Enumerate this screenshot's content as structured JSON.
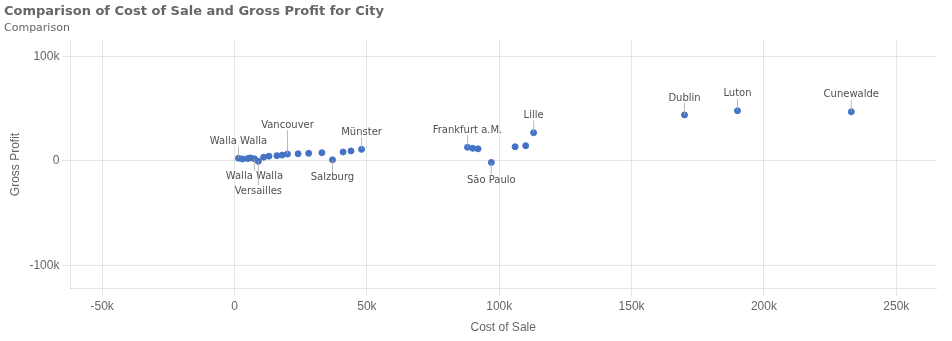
{
  "chart_data": {
    "type": "scatter",
    "title": "Comparison of Cost of Sale and Gross Profit for City",
    "subtitle": "Comparison",
    "xlabel": "Cost of Sale",
    "ylabel": "Gross Profit",
    "color": "#4472c4",
    "x": [
      1500,
      3000,
      5000,
      6000,
      7500,
      9000,
      11000,
      13000,
      16000,
      18000,
      20000,
      24000,
      28000,
      33000,
      37000,
      41000,
      44000,
      48000,
      88000,
      90000,
      92000,
      97000,
      106000,
      110000,
      113000,
      170000,
      190000,
      233000
    ],
    "values": [
      2500,
      1800,
      2200,
      2800,
      2000,
      -500,
      3500,
      4500,
      5000,
      5500,
      6500,
      6800,
      7200,
      7800,
      1000,
      8500,
      9500,
      11000,
      13000,
      12000,
      11500,
      -1500,
      13500,
      14500,
      27000,
      44000,
      48000,
      47000
    ],
    "xlim": [
      -62000,
      265000
    ],
    "ylim": [
      -122000,
      115000
    ],
    "xticks": [
      {
        "value": -50000,
        "label": "-50k"
      },
      0,
      {
        "value": 50000,
        "label": "50k"
      },
      {
        "value": 100000,
        "label": "100k"
      },
      {
        "value": 150000,
        "label": "150k"
      },
      {
        "value": 200000,
        "label": "200k"
      },
      {
        "value": 250000,
        "label": "250k"
      }
    ],
    "yticks": [
      {
        "value": -100000,
        "label": "-100k"
      },
      0,
      {
        "value": 100000,
        "label": "100k"
      }
    ],
    "grid": true,
    "annotations": [
      {
        "text": "Walla Walla",
        "x": 1500,
        "y": 2500
      },
      {
        "text": "Walla Walla",
        "x": 7500,
        "y": 2000
      },
      {
        "text": "Versailles",
        "x": 9000,
        "y": -500
      },
      {
        "text": "Vancouver",
        "x": 20000,
        "y": 6500
      },
      {
        "text": "Salzburg",
        "x": 37000,
        "y": 1000
      },
      {
        "text": "Münster",
        "x": 48000,
        "y": 11000
      },
      {
        "text": "Frankfurt a.M.",
        "x": 88000,
        "y": 13000
      },
      {
        "text": "São Paulo",
        "x": 97000,
        "y": -1500
      },
      {
        "text": "Lille",
        "x": 113000,
        "y": 27000
      },
      {
        "text": "Dublin",
        "x": 170000,
        "y": 44000
      },
      {
        "text": "Luton",
        "x": 190000,
        "y": 48000
      },
      {
        "text": "Cunewalde",
        "x": 233000,
        "y": 47000
      }
    ]
  }
}
